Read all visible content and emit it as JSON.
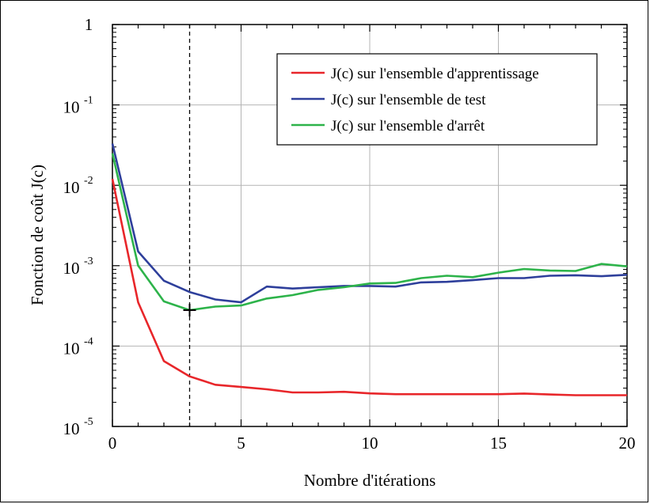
{
  "chart_data": {
    "type": "line",
    "title": "",
    "xlabel": "Nombre d'itérations",
    "ylabel": "Fonction de coût J(c)",
    "xlim": [
      0,
      20
    ],
    "ylim": [
      1e-05,
      1
    ],
    "yscale": "log",
    "grid": true,
    "legend_position": "top-right",
    "x_ticks": [
      {
        "value": 0,
        "label": "0"
      },
      {
        "value": 5,
        "label": "5"
      },
      {
        "value": 10,
        "label": "10"
      },
      {
        "value": 15,
        "label": "15"
      },
      {
        "value": 20,
        "label": "20"
      }
    ],
    "y_ticks": [
      {
        "value": 1,
        "base": "1",
        "exp": ""
      },
      {
        "value": 0.1,
        "base": "10",
        "exp": "-1"
      },
      {
        "value": 0.01,
        "base": "10",
        "exp": "-2"
      },
      {
        "value": 0.001,
        "base": "10",
        "exp": "-3"
      },
      {
        "value": 0.0001,
        "base": "10",
        "exp": "-4"
      },
      {
        "value": 1e-05,
        "base": "10",
        "exp": "-5"
      }
    ],
    "x": [
      0,
      1,
      2,
      3,
      4,
      5,
      6,
      7,
      8,
      9,
      10,
      11,
      12,
      13,
      14,
      15,
      16,
      17,
      18,
      19,
      20
    ],
    "series": [
      {
        "name": "J(c) sur l'ensemble d'apprentissage",
        "color": "#e8262a",
        "values": [
          0.012,
          0.00035,
          6.5e-05,
          4.2e-05,
          3.3e-05,
          3.1e-05,
          2.9e-05,
          2.65e-05,
          2.65e-05,
          2.7e-05,
          2.58e-05,
          2.52e-05,
          2.52e-05,
          2.52e-05,
          2.52e-05,
          2.52e-05,
          2.57e-05,
          2.5e-05,
          2.45e-05,
          2.45e-05,
          2.45e-05
        ]
      },
      {
        "name": "J(c) sur l'ensemble de test",
        "color": "#2e3f9b",
        "values": [
          0.033,
          0.0015,
          0.00065,
          0.00047,
          0.00038,
          0.00035,
          0.00055,
          0.00052,
          0.00054,
          0.00056,
          0.00056,
          0.00055,
          0.00062,
          0.00063,
          0.00066,
          0.0007,
          0.0007,
          0.00075,
          0.00076,
          0.00074,
          0.00077
        ]
      },
      {
        "name": "J(c) sur l'ensemble d'arrêt",
        "color": "#2db34a",
        "values": [
          0.025,
          0.001,
          0.00036,
          0.00028,
          0.00031,
          0.00032,
          0.00039,
          0.00043,
          0.0005,
          0.00054,
          0.0006,
          0.00061,
          0.0007,
          0.00075,
          0.00072,
          0.00082,
          0.00091,
          0.00087,
          0.00086,
          0.00105,
          0.00098
        ]
      }
    ],
    "annotations": [
      {
        "type": "vertical_dashed_line",
        "x": 3
      },
      {
        "type": "marker",
        "shape": "plus",
        "x": 3,
        "y": 0.00028
      }
    ]
  }
}
